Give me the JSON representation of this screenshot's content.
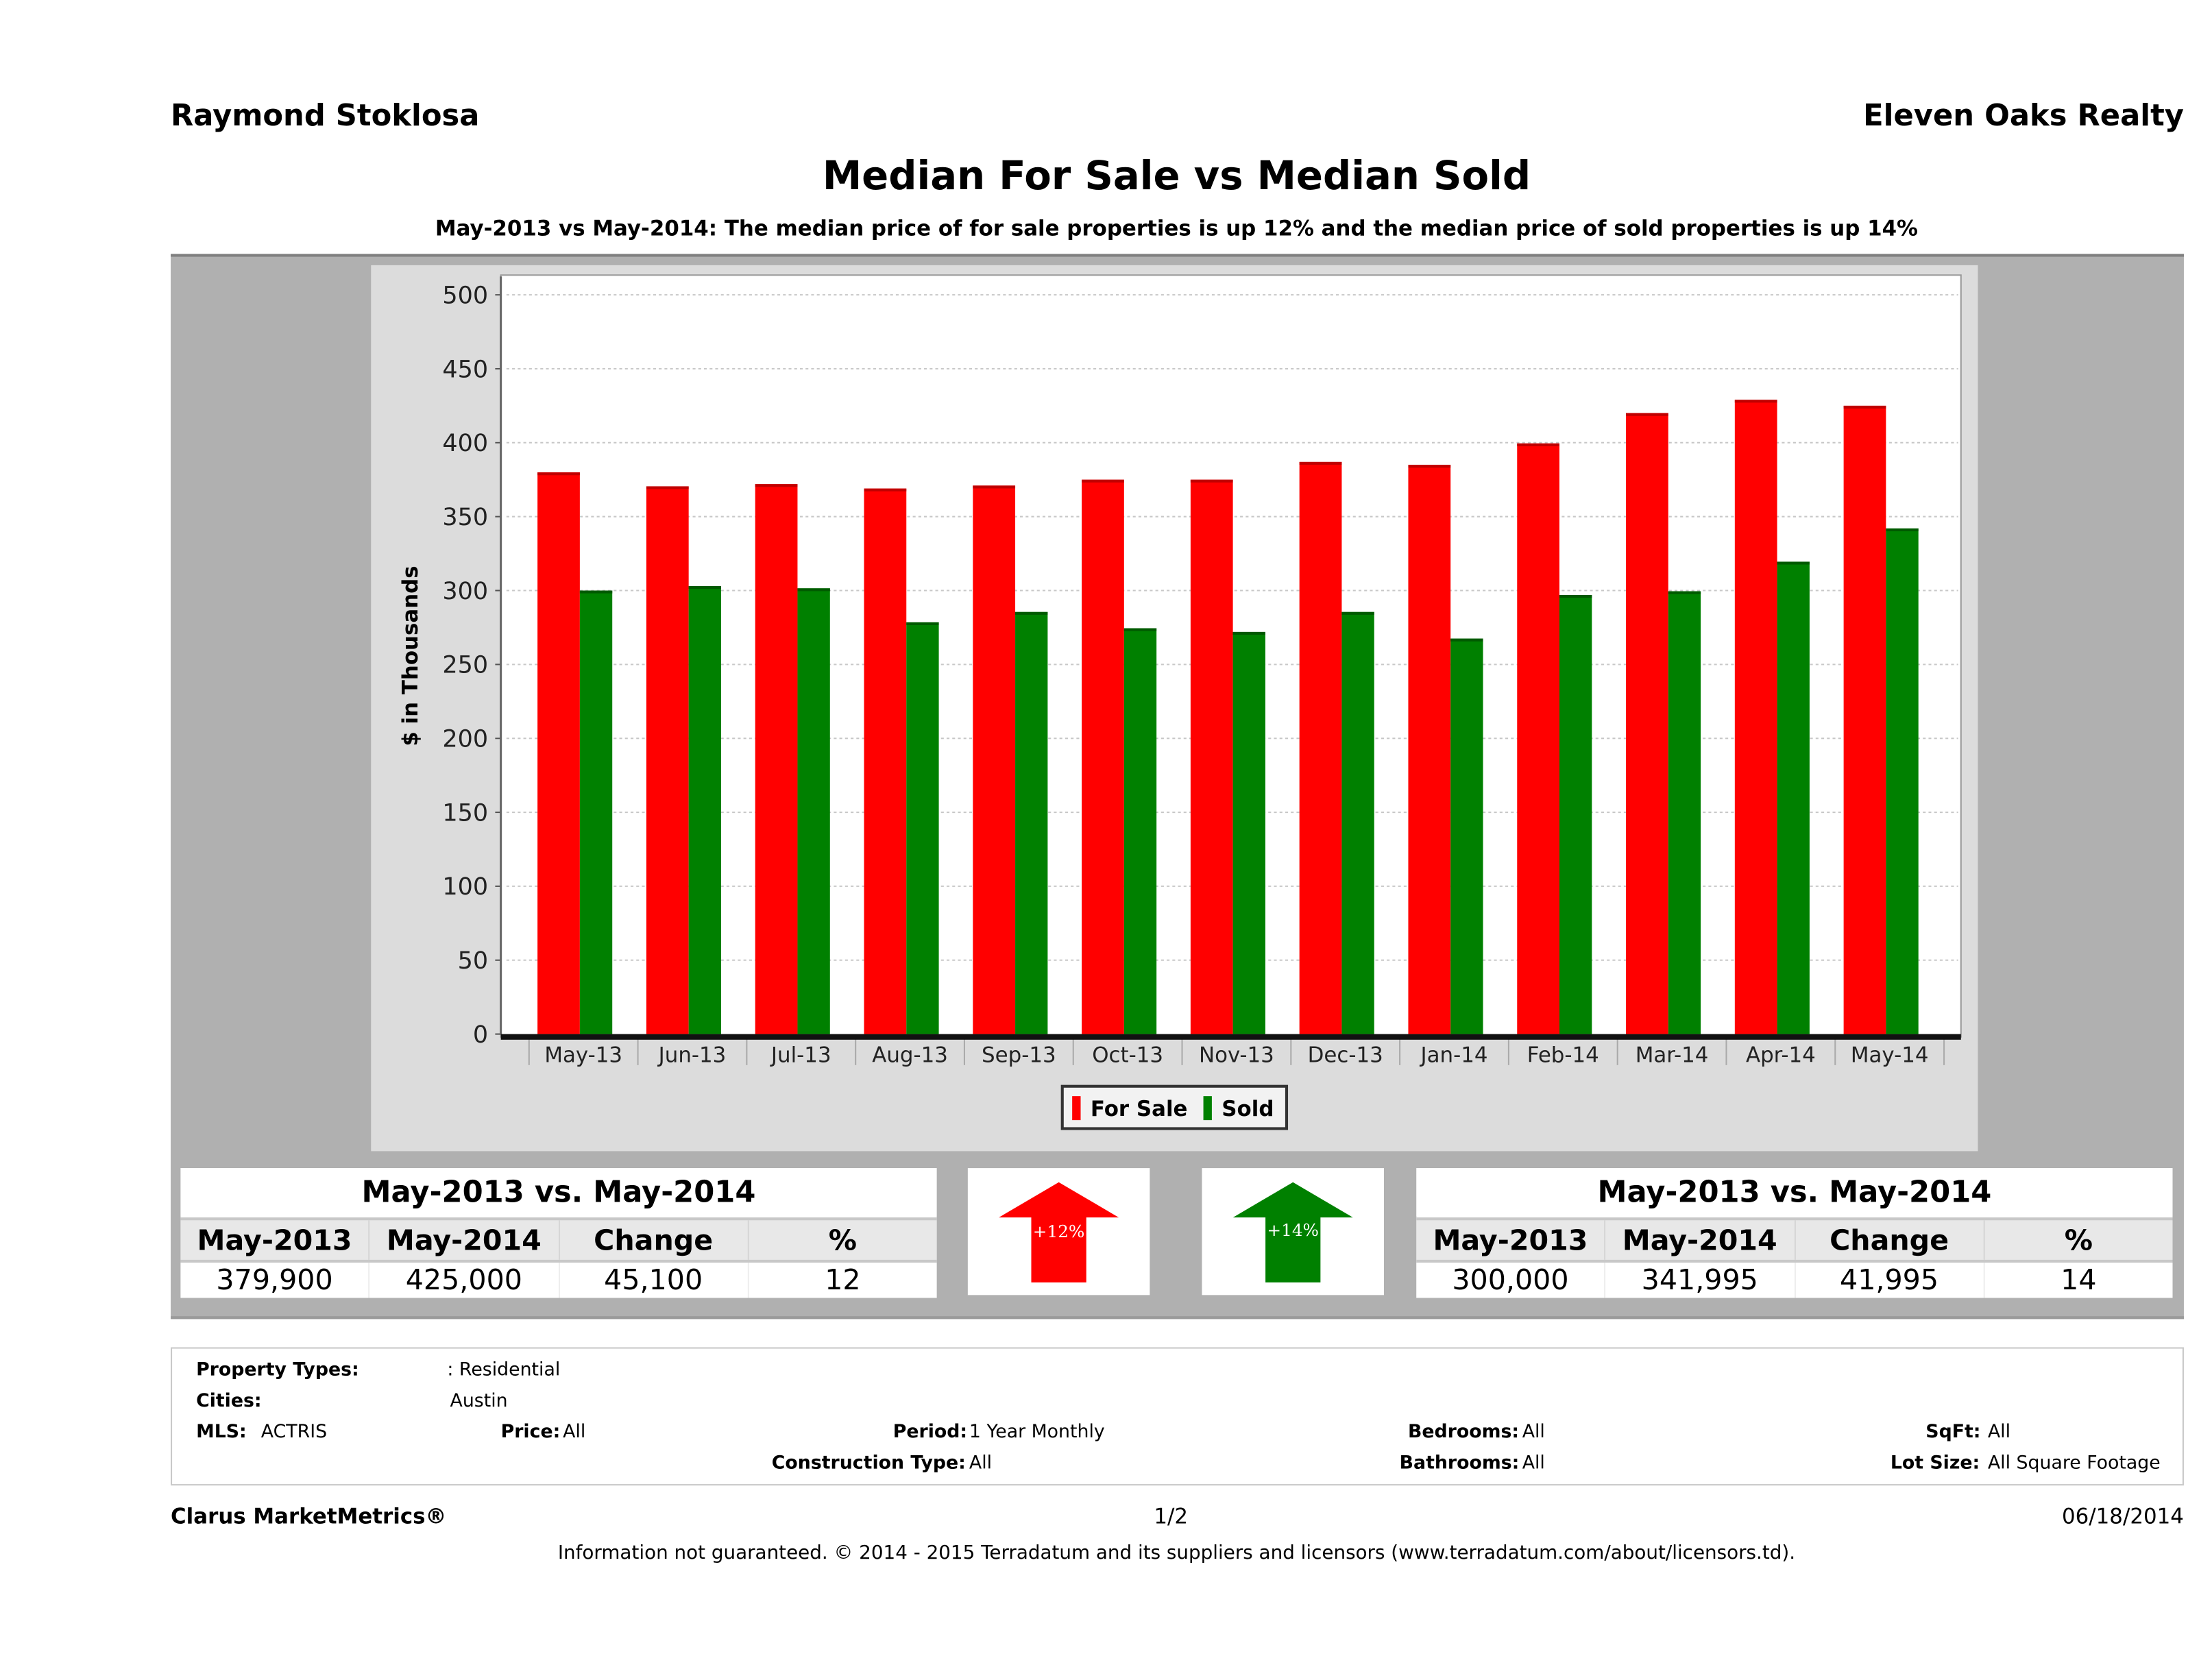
{
  "header": {
    "agent_name": "Raymond Stoklosa",
    "company": "Eleven Oaks Realty"
  },
  "title": "Median For Sale vs Median Sold",
  "subtitle": "May-2013 vs May-2014: The median price of for sale properties is up 12% and the median price of sold properties is up 14%",
  "chart_data": {
    "type": "bar",
    "title": "Median For Sale vs Median Sold",
    "xlabel": "",
    "ylabel": "$ in Thousands",
    "ylim": [
      0,
      500
    ],
    "yticks": [
      0,
      50,
      100,
      150,
      200,
      250,
      300,
      350,
      400,
      450,
      500
    ],
    "grid": true,
    "legend_position": "bottom-center",
    "categories": [
      "May-13",
      "Jun-13",
      "Jul-13",
      "Aug-13",
      "Sep-13",
      "Oct-13",
      "Nov-13",
      "Dec-13",
      "Jan-14",
      "Feb-14",
      "Mar-14",
      "Apr-14",
      "May-14"
    ],
    "series": [
      {
        "name": "For Sale",
        "color": "#ff0000",
        "values": [
          379.9,
          370.5,
          372,
          369,
          371,
          375,
          375,
          387,
          385,
          399.5,
          420,
          429,
          425
        ]
      },
      {
        "name": "Sold",
        "color": "#008000",
        "values": [
          300,
          303,
          301.5,
          278.5,
          285.5,
          274.5,
          272,
          285.5,
          267.5,
          297,
          299.5,
          319.5,
          342
        ]
      }
    ]
  },
  "for_sale_table": {
    "title": "May-2013 vs. May-2014",
    "headers": [
      "May-2013",
      "May-2014",
      "Change",
      "%"
    ],
    "values": [
      "379,900",
      "425,000",
      "45,100",
      "12"
    ]
  },
  "sold_table": {
    "title": "May-2013 vs. May-2014",
    "headers": [
      "May-2013",
      "May-2014",
      "Change",
      "%"
    ],
    "values": [
      "300,000",
      "341,995",
      "41,995",
      "14"
    ]
  },
  "arrows": {
    "for_sale": {
      "label": "+12%",
      "color": "#ff0000",
      "direction": "up"
    },
    "sold": {
      "label": "+14%",
      "color": "#008000",
      "direction": "up"
    }
  },
  "details": {
    "property_types_label": "Property Types:",
    "property_types_value": ": Residential",
    "cities_label": "Cities:",
    "cities_value": "Austin",
    "mls_label": "MLS:",
    "mls_value": "ACTRIS",
    "price_label": "Price:",
    "price_value": "All",
    "period_label": "Period:",
    "period_value": "1 Year Monthly",
    "construction_label": "Construction Type:",
    "construction_value": "All",
    "bedrooms_label": "Bedrooms:",
    "bedrooms_value": "All",
    "bathrooms_label": "Bathrooms:",
    "bathrooms_value": "All",
    "sqft_label": "SqFt:",
    "sqft_value": "All",
    "lot_size_label": "Lot Size:",
    "lot_size_value": "All Square Footage"
  },
  "footer": {
    "brand": "Clarus MarketMetrics®",
    "page": "1/2",
    "date": "06/18/2014",
    "disclaimer": "Information not guaranteed. © 2014 - 2015 Terradatum and its suppliers and licensors (www.terradatum.com/about/licensors.td)."
  }
}
